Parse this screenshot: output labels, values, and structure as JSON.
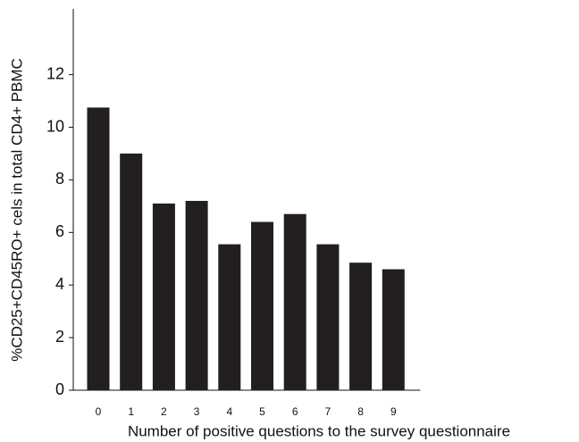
{
  "chart_data": {
    "type": "bar",
    "x_label": "Number of positive questions to the survey questionnaire",
    "y_label": "%CD25+CD45RO+ cels in total CD4+ PBMC",
    "categories": [
      "0",
      "1",
      "2",
      "3",
      "4",
      "5",
      "6",
      "7",
      "8",
      "9"
    ],
    "values": [
      10.75,
      9.0,
      7.1,
      7.2,
      5.55,
      6.4,
      6.7,
      5.55,
      4.85,
      4.6
    ],
    "color": "#231f20",
    "ylim": [
      0,
      14.5
    ],
    "yticks": [
      0,
      2,
      4,
      6,
      8,
      10,
      12
    ],
    "grid": false
  }
}
